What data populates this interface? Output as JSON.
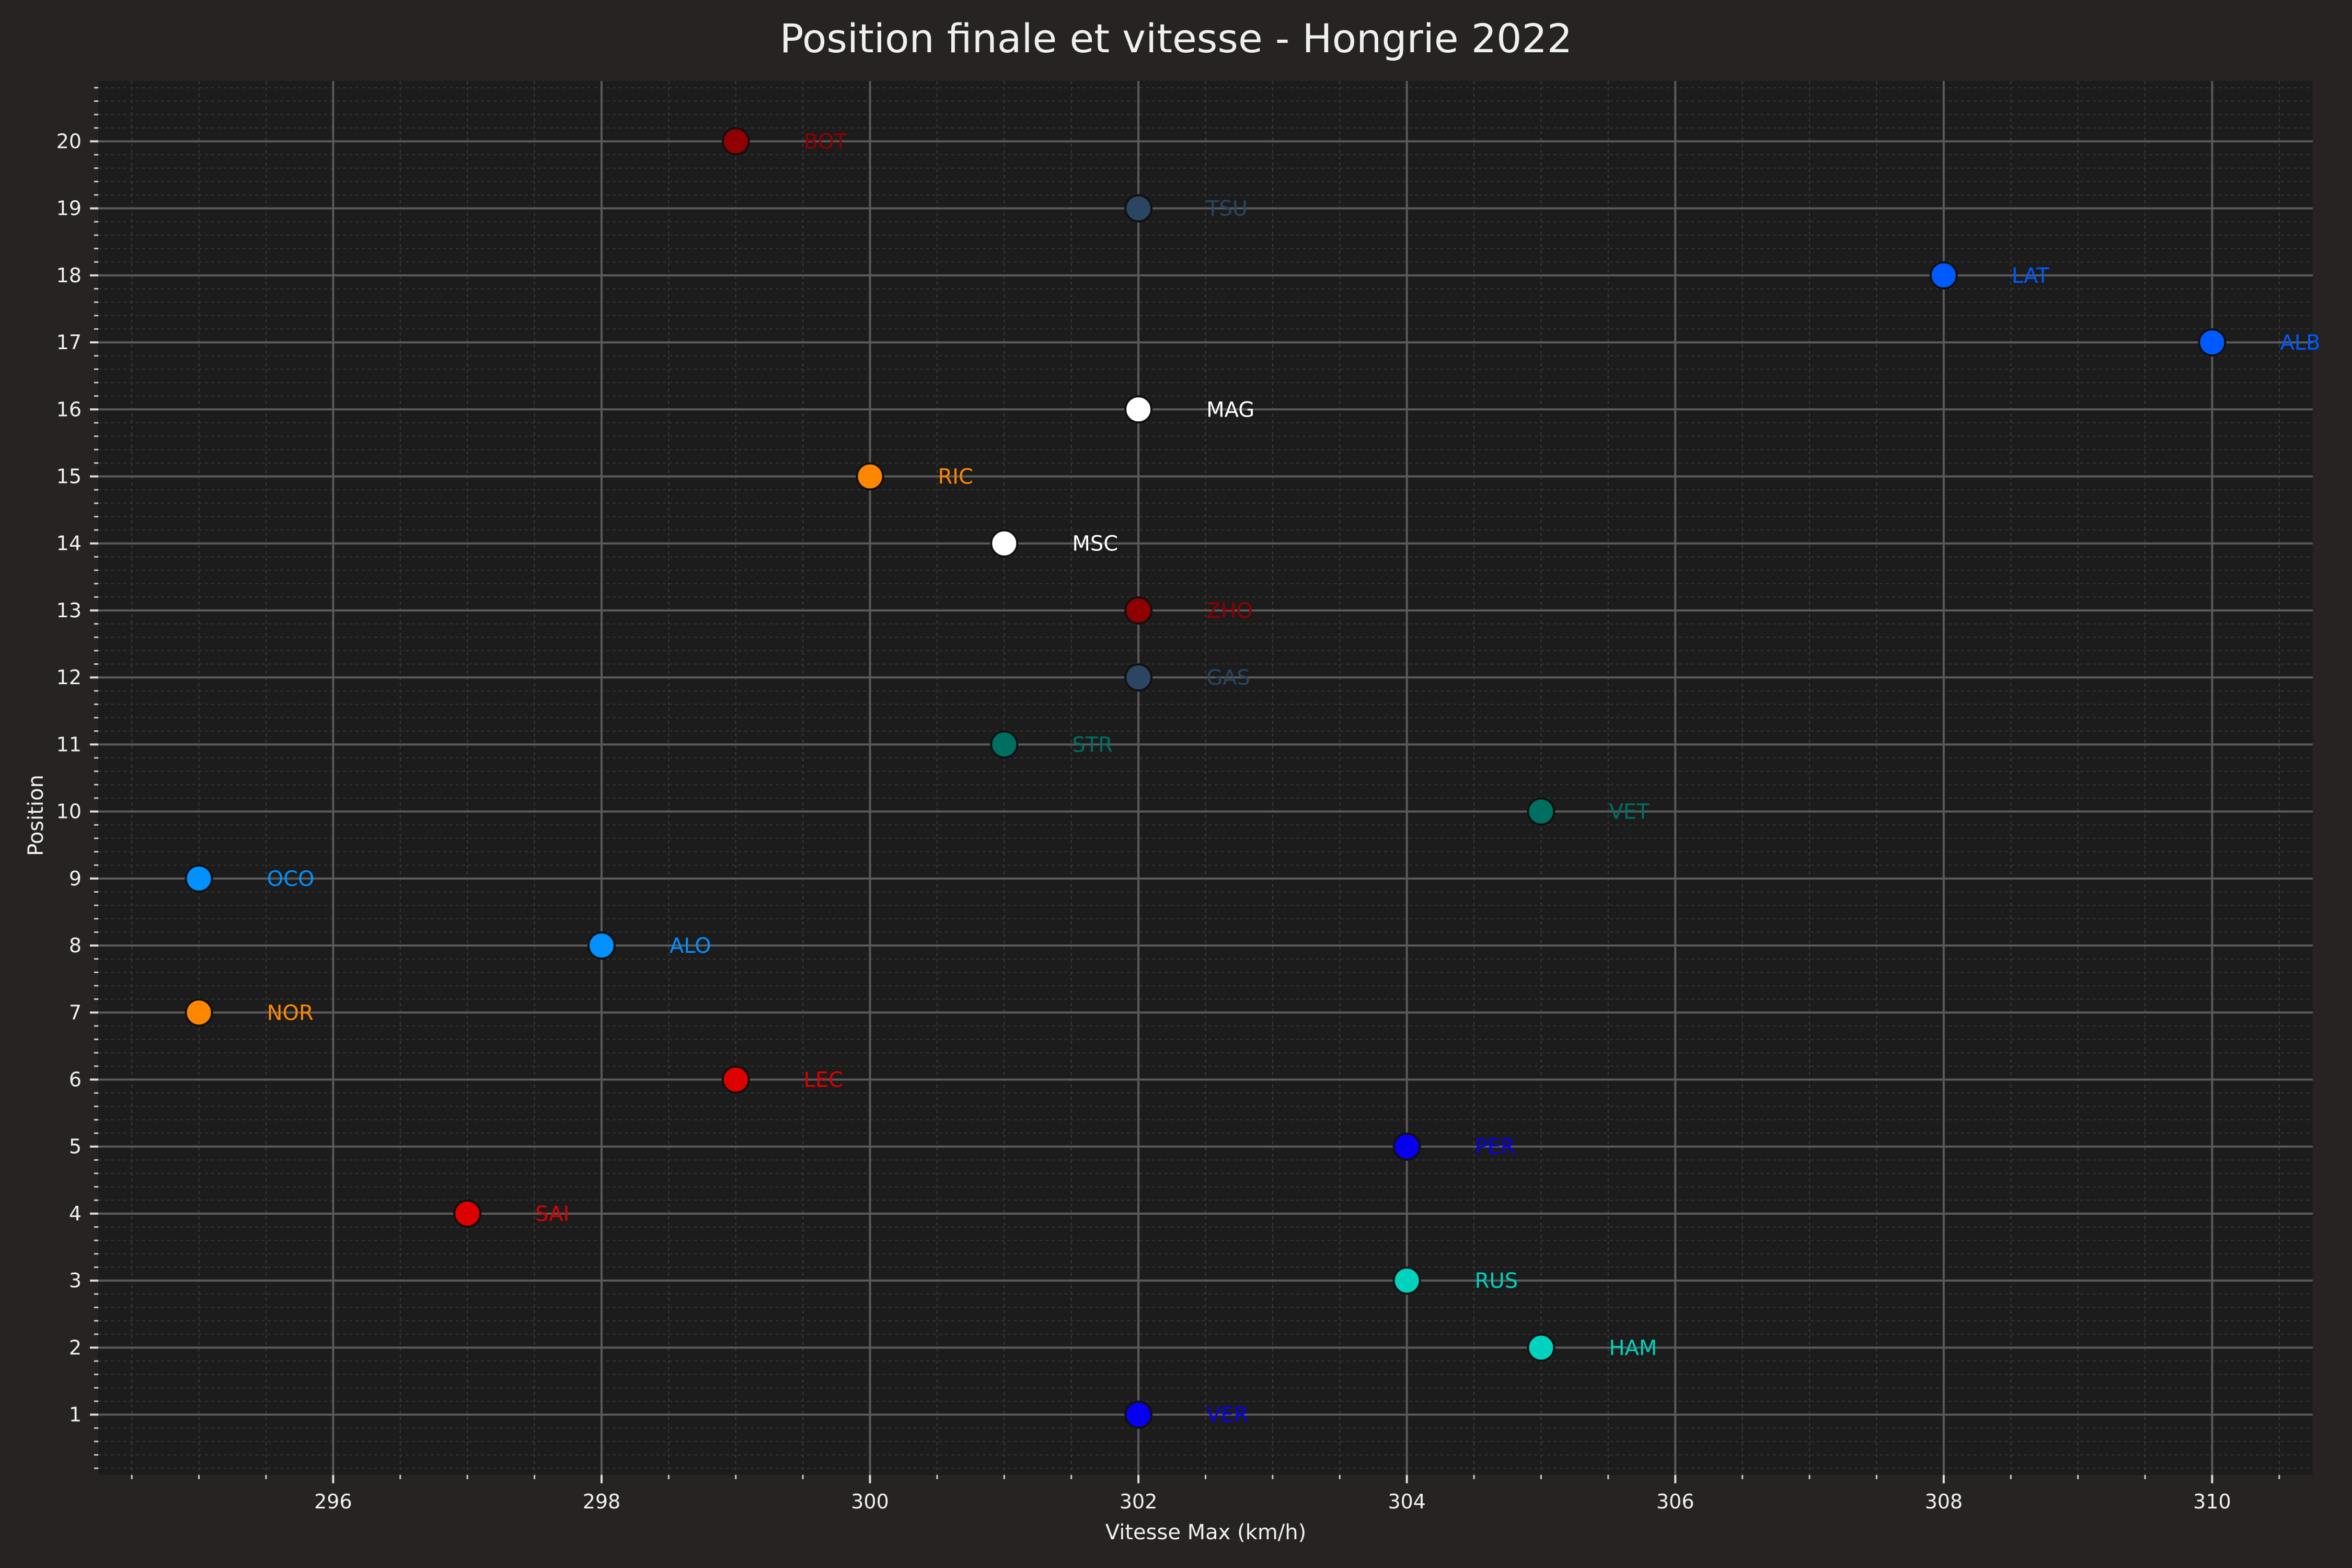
{
  "chart_data": {
    "type": "scatter",
    "title": "Position finale et vitesse - Hongrie 2022",
    "xlabel": "Vitesse Max (km/h)",
    "ylabel": "Position",
    "xlim": [
      294.25,
      310.75
    ],
    "ylim": [
      0.1,
      20.9
    ],
    "xticks": [
      296,
      298,
      300,
      302,
      304,
      306,
      308,
      310
    ],
    "yticks": [
      1,
      2,
      3,
      4,
      5,
      6,
      7,
      8,
      9,
      10,
      11,
      12,
      13,
      14,
      15,
      16,
      17,
      18,
      19,
      20
    ],
    "grid": true,
    "background": "#1c1c1c",
    "points": [
      {
        "label": "VER",
        "x": 302,
        "y": 1,
        "color": "#0600ef"
      },
      {
        "label": "HAM",
        "x": 305,
        "y": 2,
        "color": "#00d2be"
      },
      {
        "label": "RUS",
        "x": 304,
        "y": 3,
        "color": "#00d2be"
      },
      {
        "label": "SAI",
        "x": 297,
        "y": 4,
        "color": "#dc0000"
      },
      {
        "label": "PER",
        "x": 304,
        "y": 5,
        "color": "#0600ef"
      },
      {
        "label": "LEC",
        "x": 299,
        "y": 6,
        "color": "#dc0000"
      },
      {
        "label": "NOR",
        "x": 295,
        "y": 7,
        "color": "#ff8700"
      },
      {
        "label": "ALO",
        "x": 298,
        "y": 8,
        "color": "#0090ff"
      },
      {
        "label": "OCO",
        "x": 295,
        "y": 9,
        "color": "#0090ff"
      },
      {
        "label": "VET",
        "x": 305,
        "y": 10,
        "color": "#006f62"
      },
      {
        "label": "STR",
        "x": 301,
        "y": 11,
        "color": "#006f62"
      },
      {
        "label": "GAS",
        "x": 302,
        "y": 12,
        "color": "#2b4562"
      },
      {
        "label": "ZHO",
        "x": 302,
        "y": 13,
        "color": "#900000"
      },
      {
        "label": "MSC",
        "x": 301,
        "y": 14,
        "color": "#ffffff"
      },
      {
        "label": "RIC",
        "x": 300,
        "y": 15,
        "color": "#ff8700"
      },
      {
        "label": "MAG",
        "x": 302,
        "y": 16,
        "color": "#ffffff"
      },
      {
        "label": "ALB",
        "x": 310,
        "y": 17,
        "color": "#005aff"
      },
      {
        "label": "LAT",
        "x": 308,
        "y": 18,
        "color": "#005aff"
      },
      {
        "label": "TSU",
        "x": 302,
        "y": 19,
        "color": "#2b4562"
      },
      {
        "label": "BOT",
        "x": 299,
        "y": 20,
        "color": "#900000"
      }
    ]
  }
}
